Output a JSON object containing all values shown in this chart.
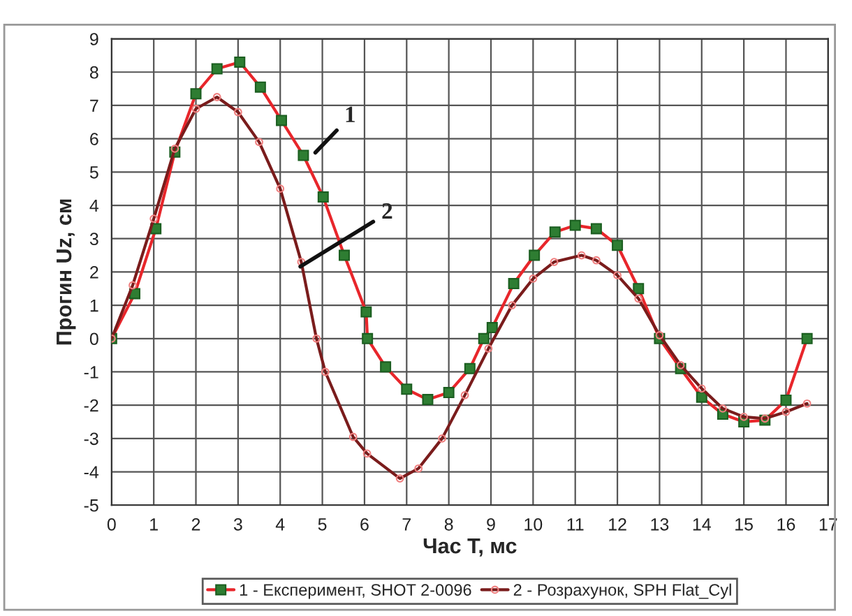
{
  "chart_data": {
    "type": "line",
    "xlabel": "Час T, мс",
    "ylabel": "Прогин Uz, см",
    "xlim": [
      0,
      17
    ],
    "ylim": [
      -5,
      9
    ],
    "xticks": [
      0,
      1,
      2,
      3,
      4,
      5,
      6,
      7,
      8,
      9,
      10,
      11,
      12,
      13,
      14,
      15,
      16,
      17
    ],
    "yticks": [
      -5,
      -4,
      -3,
      -2,
      -1,
      0,
      1,
      2,
      3,
      4,
      5,
      6,
      7,
      8,
      9
    ],
    "grid": true,
    "legend": "bottom",
    "series": [
      {
        "name": "1 - Експеримент, SHOT 2-0096",
        "color": "#e8262b",
        "marker": "square",
        "x": [
          0,
          0.55,
          1.05,
          1.5,
          2.0,
          2.5,
          3.04,
          3.53,
          4.03,
          4.55,
          5.02,
          5.52,
          6.04,
          6.07,
          6.5,
          7.0,
          7.5,
          8.0,
          8.5,
          8.83,
          9.03,
          9.54,
          10.03,
          10.52,
          11.0,
          11.5,
          12.0,
          12.5,
          13.0,
          13.5,
          14.0,
          14.5,
          15.0,
          15.5,
          16.0,
          16.5
        ],
        "values": [
          0,
          1.35,
          3.3,
          5.6,
          7.35,
          8.1,
          8.3,
          7.55,
          6.55,
          5.5,
          4.25,
          2.5,
          0.8,
          0,
          -0.85,
          -1.52,
          -1.83,
          -1.62,
          -0.9,
          0,
          0.33,
          1.65,
          2.5,
          3.2,
          3.4,
          3.3,
          2.8,
          1.5,
          0,
          -0.9,
          -1.76,
          -2.27,
          -2.5,
          -2.45,
          -1.85,
          0
        ]
      },
      {
        "name": "2 - Розрахунок, SPH Flat_Cyl",
        "color": "#7a1c1c",
        "marker": "circle",
        "x": [
          0,
          0.5,
          1.0,
          1.5,
          2.0,
          2.5,
          3.0,
          3.5,
          4.0,
          4.5,
          4.86,
          5.07,
          5.73,
          6.06,
          6.84,
          7.28,
          7.84,
          8.38,
          8.94,
          9.5,
          10.0,
          10.5,
          11.15,
          11.5,
          12.0,
          12.5,
          13.0,
          13.5,
          14.0,
          14.5,
          15.0,
          15.5,
          16.0,
          16.5
        ],
        "values": [
          0,
          1.6,
          3.6,
          5.7,
          6.9,
          7.25,
          6.8,
          5.9,
          4.5,
          2.3,
          0,
          -1,
          -2.95,
          -3.45,
          -4.2,
          -3.9,
          -3.0,
          -1.7,
          -0.3,
          1.0,
          1.8,
          2.3,
          2.5,
          2.35,
          1.9,
          1.2,
          0.1,
          -0.8,
          -1.5,
          -2.1,
          -2.35,
          -2.4,
          -2.2,
          -1.95
        ]
      }
    ],
    "annotations": [
      {
        "text": "1",
        "x": 4.77,
        "y": 5.5
      },
      {
        "text": "2",
        "x": 4.4,
        "y": 2.1
      }
    ]
  }
}
